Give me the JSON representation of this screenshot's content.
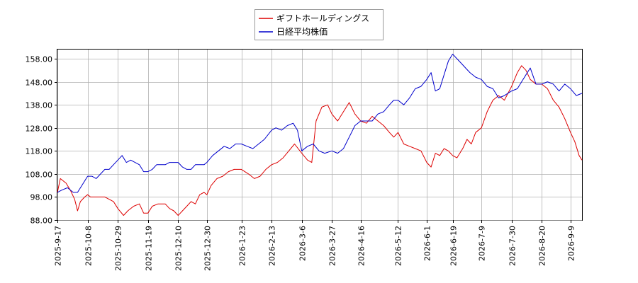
{
  "chart_data": {
    "type": "line",
    "grid": true,
    "legend_placement": "top-center",
    "ylim": [
      88,
      162
    ],
    "yticks": [
      "88.00",
      "98.00",
      "108.00",
      "118.00",
      "128.00",
      "138.00",
      "148.00",
      "158.00"
    ],
    "xticks": [
      "2025-9-17",
      "2025-10-8",
      "2025-10-29",
      "2025-11-19",
      "2025-12-10",
      "2025-12-30",
      "2026-1-23",
      "2026-2-13",
      "2026-3-6",
      "2026-3-27",
      "2026-4-16",
      "2026-5-12",
      "2026-6-1",
      "2026-6-19",
      "2026-7-9",
      "2026-7-30",
      "2026-8-20",
      "2026-9-9"
    ],
    "x_end": "2026-9-17",
    "series": [
      {
        "name": "ギフトホールディングス",
        "color": "#dd0000",
        "points": [
          [
            "2025-9-17",
            100
          ],
          [
            "2025-9-19",
            106
          ],
          [
            "2025-9-23",
            104
          ],
          [
            "2025-9-26",
            101
          ],
          [
            "2025-9-29",
            97
          ],
          [
            "2025-10-1",
            92
          ],
          [
            "2025-10-3",
            96
          ],
          [
            "2025-10-6",
            98
          ],
          [
            "2025-10-8",
            99
          ],
          [
            "2025-10-10",
            98
          ],
          [
            "2025-10-14",
            98
          ],
          [
            "2025-10-16",
            98
          ],
          [
            "2025-10-20",
            98
          ],
          [
            "2025-10-23",
            97
          ],
          [
            "2025-10-26",
            96
          ],
          [
            "2025-10-29",
            93
          ],
          [
            "2025-11-2",
            90
          ],
          [
            "2025-11-5",
            92
          ],
          [
            "2025-11-9",
            94
          ],
          [
            "2025-11-13",
            95
          ],
          [
            "2025-11-16",
            91
          ],
          [
            "2025-11-19",
            91
          ],
          [
            "2025-11-22",
            94
          ],
          [
            "2025-11-26",
            95
          ],
          [
            "2025-12-1",
            95
          ],
          [
            "2025-12-4",
            93
          ],
          [
            "2025-12-7",
            92
          ],
          [
            "2025-12-10",
            90
          ],
          [
            "2025-12-13",
            92
          ],
          [
            "2025-12-16",
            94
          ],
          [
            "2025-12-19",
            96
          ],
          [
            "2025-12-22",
            95
          ],
          [
            "2025-12-25",
            99
          ],
          [
            "2025-12-28",
            100
          ],
          [
            "2025-12-30",
            99
          ],
          [
            "2026-1-2",
            103
          ],
          [
            "2026-1-6",
            106
          ],
          [
            "2026-1-10",
            107
          ],
          [
            "2026-1-14",
            109
          ],
          [
            "2026-1-18",
            110
          ],
          [
            "2026-1-23",
            110
          ],
          [
            "2026-1-28",
            108
          ],
          [
            "2026-2-1",
            106
          ],
          [
            "2026-2-5",
            107
          ],
          [
            "2026-2-9",
            110
          ],
          [
            "2026-2-13",
            112
          ],
          [
            "2026-2-17",
            113
          ],
          [
            "2026-2-21",
            115
          ],
          [
            "2026-2-25",
            118
          ],
          [
            "2026-3-1",
            121
          ],
          [
            "2026-3-6",
            117
          ],
          [
            "2026-3-10",
            114
          ],
          [
            "2026-3-13",
            113
          ],
          [
            "2026-3-16",
            131
          ],
          [
            "2026-3-20",
            137
          ],
          [
            "2026-3-24",
            138
          ],
          [
            "2026-3-27",
            134
          ],
          [
            "2026-3-31",
            131
          ],
          [
            "2026-4-4",
            135
          ],
          [
            "2026-4-8",
            139
          ],
          [
            "2026-4-12",
            134
          ],
          [
            "2026-4-16",
            131
          ],
          [
            "2026-4-20",
            130
          ],
          [
            "2026-4-24",
            133
          ],
          [
            "2026-4-28",
            131
          ],
          [
            "2026-5-2",
            129
          ],
          [
            "2026-5-6",
            126
          ],
          [
            "2026-5-9",
            124
          ],
          [
            "2026-5-12",
            126
          ],
          [
            "2026-5-16",
            121
          ],
          [
            "2026-5-20",
            120
          ],
          [
            "2026-5-24",
            119
          ],
          [
            "2026-5-28",
            118
          ],
          [
            "2026-6-1",
            113
          ],
          [
            "2026-6-4",
            111
          ],
          [
            "2026-6-7",
            117
          ],
          [
            "2026-6-10",
            116
          ],
          [
            "2026-6-13",
            119
          ],
          [
            "2026-6-16",
            118
          ],
          [
            "2026-6-19",
            116
          ],
          [
            "2026-6-22",
            115
          ],
          [
            "2026-6-26",
            119
          ],
          [
            "2026-6-29",
            123
          ],
          [
            "2026-7-2",
            121
          ],
          [
            "2026-7-5",
            126
          ],
          [
            "2026-7-9",
            128
          ],
          [
            "2026-7-13",
            135
          ],
          [
            "2026-7-17",
            140
          ],
          [
            "2026-7-21",
            142
          ],
          [
            "2026-7-25",
            140
          ],
          [
            "2026-7-30",
            146
          ],
          [
            "2026-8-3",
            152
          ],
          [
            "2026-8-6",
            155
          ],
          [
            "2026-8-9",
            153
          ],
          [
            "2026-8-12",
            149
          ],
          [
            "2026-8-16",
            147
          ],
          [
            "2026-8-20",
            147
          ],
          [
            "2026-8-24",
            145
          ],
          [
            "2026-8-28",
            140
          ],
          [
            "2026-9-1",
            137
          ],
          [
            "2026-9-5",
            132
          ],
          [
            "2026-9-9",
            126
          ],
          [
            "2026-9-12",
            122
          ],
          [
            "2026-9-15",
            116
          ],
          [
            "2026-9-17",
            114
          ]
        ]
      },
      {
        "name": "日経平均株価",
        "color": "#0000cc",
        "points": [
          [
            "2025-9-17",
            100
          ],
          [
            "2025-9-20",
            101
          ],
          [
            "2025-9-24",
            102
          ],
          [
            "2025-9-28",
            100
          ],
          [
            "2025-10-1",
            100
          ],
          [
            "2025-10-4",
            103
          ],
          [
            "2025-10-8",
            107
          ],
          [
            "2025-10-11",
            107
          ],
          [
            "2025-10-14",
            106
          ],
          [
            "2025-10-17",
            108
          ],
          [
            "2025-10-20",
            110
          ],
          [
            "2025-10-23",
            110
          ],
          [
            "2025-10-26",
            112
          ],
          [
            "2025-10-29",
            114
          ],
          [
            "2025-11-1",
            116
          ],
          [
            "2025-11-4",
            113
          ],
          [
            "2025-11-7",
            114
          ],
          [
            "2025-11-10",
            113
          ],
          [
            "2025-11-13",
            112
          ],
          [
            "2025-11-16",
            109
          ],
          [
            "2025-11-19",
            109
          ],
          [
            "2025-11-22",
            110
          ],
          [
            "2025-11-25",
            112
          ],
          [
            "2025-11-28",
            112
          ],
          [
            "2025-12-1",
            112
          ],
          [
            "2025-12-4",
            113
          ],
          [
            "2025-12-7",
            113
          ],
          [
            "2025-12-10",
            113
          ],
          [
            "2025-12-13",
            111
          ],
          [
            "2025-12-16",
            110
          ],
          [
            "2025-12-19",
            110
          ],
          [
            "2025-12-22",
            112
          ],
          [
            "2025-12-25",
            112
          ],
          [
            "2025-12-28",
            112
          ],
          [
            "2025-12-30",
            113
          ],
          [
            "2026-1-3",
            116
          ],
          [
            "2026-1-7",
            118
          ],
          [
            "2026-1-11",
            120
          ],
          [
            "2026-1-15",
            119
          ],
          [
            "2026-1-19",
            121
          ],
          [
            "2026-1-23",
            121
          ],
          [
            "2026-1-27",
            120
          ],
          [
            "2026-1-31",
            119
          ],
          [
            "2026-2-4",
            121
          ],
          [
            "2026-2-8",
            123
          ],
          [
            "2026-2-13",
            127
          ],
          [
            "2026-2-16",
            128
          ],
          [
            "2026-2-20",
            127
          ],
          [
            "2026-2-24",
            129
          ],
          [
            "2026-2-28",
            130
          ],
          [
            "2026-3-3",
            127
          ],
          [
            "2026-3-6",
            118
          ],
          [
            "2026-3-10",
            120
          ],
          [
            "2026-3-14",
            121
          ],
          [
            "2026-3-18",
            118
          ],
          [
            "2026-3-22",
            117
          ],
          [
            "2026-3-27",
            118
          ],
          [
            "2026-3-31",
            117
          ],
          [
            "2026-4-4",
            119
          ],
          [
            "2026-4-8",
            124
          ],
          [
            "2026-4-12",
            129
          ],
          [
            "2026-4-16",
            131
          ],
          [
            "2026-4-20",
            131
          ],
          [
            "2026-4-24",
            131
          ],
          [
            "2026-4-28",
            134
          ],
          [
            "2026-5-2",
            135
          ],
          [
            "2026-5-6",
            138
          ],
          [
            "2026-5-9",
            140
          ],
          [
            "2026-5-12",
            140
          ],
          [
            "2026-5-16",
            138
          ],
          [
            "2026-5-20",
            141
          ],
          [
            "2026-5-24",
            145
          ],
          [
            "2026-5-28",
            146
          ],
          [
            "2026-6-1",
            149
          ],
          [
            "2026-6-4",
            152
          ],
          [
            "2026-6-7",
            144
          ],
          [
            "2026-6-10",
            145
          ],
          [
            "2026-6-13",
            151
          ],
          [
            "2026-6-16",
            157
          ],
          [
            "2026-6-19",
            160
          ],
          [
            "2026-6-22",
            158
          ],
          [
            "2026-6-25",
            156
          ],
          [
            "2026-6-28",
            154
          ],
          [
            "2026-7-1",
            152
          ],
          [
            "2026-7-5",
            150
          ],
          [
            "2026-7-9",
            149
          ],
          [
            "2026-7-13",
            146
          ],
          [
            "2026-7-17",
            145
          ],
          [
            "2026-7-21",
            141
          ],
          [
            "2026-7-25",
            142
          ],
          [
            "2026-7-30",
            144
          ],
          [
            "2026-8-3",
            145
          ],
          [
            "2026-8-6",
            148
          ],
          [
            "2026-8-9",
            151
          ],
          [
            "2026-8-12",
            154
          ],
          [
            "2026-8-16",
            147
          ],
          [
            "2026-8-20",
            147
          ],
          [
            "2026-8-24",
            148
          ],
          [
            "2026-8-28",
            147
          ],
          [
            "2026-9-1",
            144
          ],
          [
            "2026-9-5",
            147
          ],
          [
            "2026-9-9",
            145
          ],
          [
            "2026-9-13",
            142
          ],
          [
            "2026-9-17",
            143
          ]
        ]
      }
    ]
  }
}
